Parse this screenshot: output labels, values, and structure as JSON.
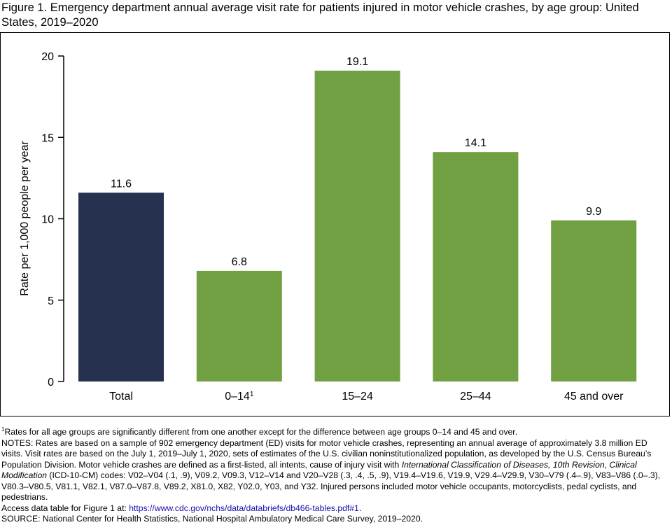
{
  "title": "Figure 1. Emergency department annual average visit rate for patients injured in motor vehicle crashes, by age group: United States, 2019–2020",
  "chart_data": {
    "type": "bar",
    "categories": [
      "Total",
      "0–14",
      "15–24",
      "25–44",
      "45 and over"
    ],
    "category_superscripts": [
      "",
      "1",
      "",
      "",
      ""
    ],
    "values": [
      11.6,
      6.8,
      19.1,
      14.1,
      9.9
    ],
    "value_labels": [
      "11.6",
      "6.8",
      "19.1",
      "14.1",
      "9.9"
    ],
    "bar_colors": [
      "#26314f",
      "#70a041",
      "#70a041",
      "#70a041",
      "#70a041"
    ],
    "ylabel": "Rate per 1,000 people per year",
    "ylim": [
      0,
      20
    ],
    "yticks": [
      0,
      5,
      10,
      15,
      20
    ],
    "grid": false
  },
  "footnotes": {
    "footnote_marker": "1",
    "footnote_1": "Rates for all age groups are significantly different from one another except for the difference between age groups 0–14 and 45 and over.",
    "notes_part1": "NOTES: Rates are based on a sample of 902 emergency department (ED) visits for motor vehicle crashes, representing an annual average of approximately 3.8 million ED visits. Visit rates are based on the July 1, 2019–July 1, 2020, sets of estimates of the U.S. civilian noninstitutionalized population, as developed by the U.S. Census Bureau’s Population Division. Motor vehicle crashes are defined as a first-listed, all intents, cause of injury visit with ",
    "notes_italic": "International Classification of Diseases, 10th Revision, Clinical Modification",
    "notes_part2": " (ICD-10-CM) codes: V02–V04 (.1, .9), V09.2, V09.3, V12–V14 and V20–V28 (.3, .4, .5, .9), V19.4–V19.6, V19.9, V29.4–V29.9, V30–V79 (.4–.9), V83–V86 (.0–.3), V80.3–V80.5, V81.1, V82.1, V87.0–V87.8, V89.2, X81.0, X82, Y02.0, Y03, and Y32. Injured persons included motor vehicle occupants, motorcyclists, pedal cyclists, and pedestrians.",
    "access_prefix": "Access data table for Figure 1 at: ",
    "access_link": "https://www.cdc.gov/nchs/data/databriefs/db466-tables.pdf#1",
    "access_suffix": ".",
    "source": "SOURCE: National Center for Health Statistics, National Hospital Ambulatory Medical Care Survey, 2019–2020."
  }
}
